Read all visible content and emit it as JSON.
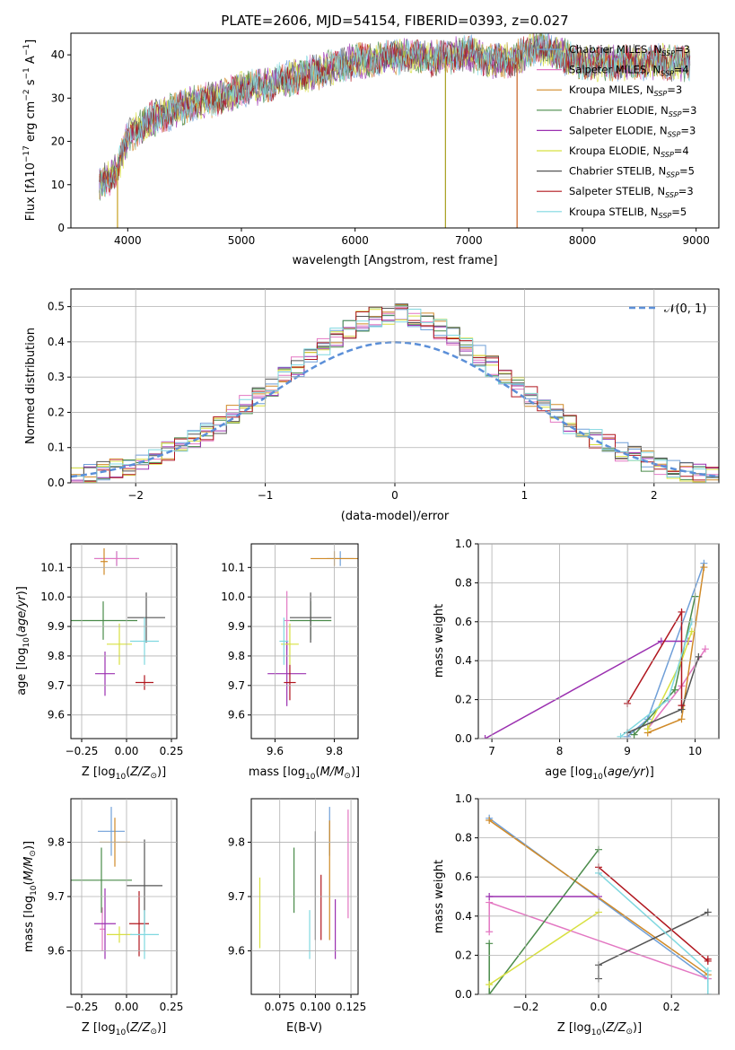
{
  "figure": {
    "title": "PLATE=2606, MJD=54154, FIBERID=0393, z=0.027"
  },
  "series_styles": [
    {
      "name": "Chabrier MILES",
      "nssp": "3",
      "color": "#6f9fd8"
    },
    {
      "name": "Salpeter MILES",
      "nssp": "4",
      "color": "#e377c2"
    },
    {
      "name": "Kroupa MILES",
      "nssp": "3",
      "color": "#d08a28"
    },
    {
      "name": "Chabrier ELODIE",
      "nssp": "3",
      "color": "#4a8b4a"
    },
    {
      "name": "Salpeter ELODIE",
      "nssp": "3",
      "color": "#9b30b0"
    },
    {
      "name": "Kroupa ELODIE",
      "nssp": "4",
      "color": "#d8e040"
    },
    {
      "name": "Chabrier STELIB",
      "nssp": "5",
      "color": "#555555"
    },
    {
      "name": "Salpeter STELIB",
      "nssp": "3",
      "color": "#b0161e"
    },
    {
      "name": "Kroupa STELIB",
      "nssp": "5",
      "color": "#7fd8e0"
    }
  ],
  "chart_data": [
    {
      "id": "spectrum",
      "type": "line",
      "xlabel": "wavelength [Angstrom, rest frame]",
      "ylabel": "Flux [f_λ10^-17 erg cm^-2 s^-1 A^-1]",
      "xlim": [
        3500,
        9200
      ],
      "ylim": [
        0,
        45
      ],
      "xticks": [
        "4000",
        "5000",
        "6000",
        "7000",
        "8000",
        "9000"
      ],
      "yticks": [
        "0",
        "10",
        "20",
        "30",
        "40"
      ],
      "legend": "top-right",
      "x_range": [
        3750,
        8950
      ],
      "continuum": [
        [
          3750,
          10
        ],
        [
          3900,
          13
        ],
        [
          4000,
          21
        ],
        [
          4200,
          25
        ],
        [
          4400,
          27
        ],
        [
          4600,
          29
        ],
        [
          4800,
          30
        ],
        [
          5000,
          32
        ],
        [
          5200,
          33
        ],
        [
          5500,
          35
        ],
        [
          5800,
          37
        ],
        [
          6000,
          38.5
        ],
        [
          6300,
          39.5
        ],
        [
          6500,
          40
        ],
        [
          6700,
          39
        ],
        [
          7000,
          40.5
        ],
        [
          7200,
          38.5
        ],
        [
          7400,
          39
        ],
        [
          7600,
          42
        ],
        [
          7800,
          40
        ],
        [
          8000,
          38
        ],
        [
          8300,
          38
        ],
        [
          8600,
          38.5
        ],
        [
          8950,
          38
        ]
      ],
      "spikes": [
        {
          "x": 3910,
          "y": 0
        },
        {
          "x": 6795,
          "y": 0
        },
        {
          "x": 7425,
          "y": 0
        }
      ],
      "grid": false
    },
    {
      "id": "residuals",
      "type": "histogram",
      "xlabel": "(data-model)/error",
      "ylabel": "Normed distribution",
      "xlim": [
        -2.5,
        2.5
      ],
      "ylim": [
        0,
        0.55
      ],
      "xticks": [
        "−2",
        "−1",
        "0",
        "1",
        "2"
      ],
      "yticks": [
        "0.0",
        "0.1",
        "0.2",
        "0.3",
        "0.4",
        "0.5"
      ],
      "bin_width": 0.1,
      "reference": {
        "label": "𝒩(0, 1)",
        "mean": 0,
        "sigma": 1,
        "color": "#5b8fd8"
      },
      "legend": "top-right",
      "grid": true
    },
    {
      "id": "age-vs-Z",
      "type": "errorbar",
      "xlabel": "Z [log10(Z/Z☉)]",
      "ylabel": "age  [log10(age/yr)]",
      "xlim": [
        -0.31,
        0.28
      ],
      "ylim": [
        9.52,
        10.18
      ],
      "xticks": [
        "−0.25",
        "0.00",
        "0.25"
      ],
      "yticks": [
        "9.6",
        "9.7",
        "9.8",
        "9.9",
        "10.0",
        "10.1"
      ],
      "points": [
        {
          "x": -0.055,
          "xerr": 0.125,
          "y": 10.13,
          "yerr": 0.025
        },
        {
          "x": -0.055,
          "xerr": 0.125,
          "y": 10.13,
          "yerr": 0.025
        },
        {
          "x": -0.125,
          "xerr": 0.02,
          "y": 10.12,
          "yerr": 0.045
        },
        {
          "x": -0.13,
          "xerr": 0.19,
          "y": 9.92,
          "yerr": 0.065
        },
        {
          "x": -0.12,
          "xerr": 0.055,
          "y": 9.74,
          "yerr": 0.075
        },
        {
          "x": -0.04,
          "xerr": 0.07,
          "y": 9.84,
          "yerr": 0.07
        },
        {
          "x": 0.11,
          "xerr": 0.105,
          "y": 9.93,
          "yerr": 0.085
        },
        {
          "x": 0.1,
          "xerr": 0.05,
          "y": 9.71,
          "yerr": 0.025
        },
        {
          "x": 0.1,
          "xerr": 0.08,
          "y": 9.85,
          "yerr": 0.08
        }
      ],
      "grid": true
    },
    {
      "id": "age-vs-mass",
      "type": "errorbar",
      "xlabel": "mass [log10(M/M☉)]",
      "ylabel": "",
      "xlim": [
        9.52,
        9.88
      ],
      "ylim": [
        9.52,
        10.18
      ],
      "xticks": [
        "9.6",
        "9.8"
      ],
      "yticks": [
        "9.6",
        "9.7",
        "9.8",
        "9.9",
        "10.0",
        "10.1"
      ],
      "points": [
        {
          "x": 9.82,
          "xerr": 0.045,
          "y": 10.13,
          "yerr": 0.025
        },
        {
          "x": 9.64,
          "xerr": 0.01,
          "y": 9.92,
          "yerr": 0.1
        },
        {
          "x": 9.8,
          "xerr": 0.08,
          "y": 10.13,
          "yerr": 0.025
        },
        {
          "x": 9.72,
          "xerr": 0.07,
          "y": 9.92,
          "yerr": 0.065
        },
        {
          "x": 9.64,
          "xerr": 0.065,
          "y": 9.74,
          "yerr": 0.11
        },
        {
          "x": 9.65,
          "xerr": 0.03,
          "y": 9.84,
          "yerr": 0.07
        },
        {
          "x": 9.72,
          "xerr": 0.07,
          "y": 9.93,
          "yerr": 0.085
        },
        {
          "x": 9.65,
          "xerr": 0.02,
          "y": 9.71,
          "yerr": 0.06
        },
        {
          "x": 9.63,
          "xerr": 0.015,
          "y": 9.85,
          "yerr": 0.08
        }
      ],
      "grid": true
    },
    {
      "id": "weight-vs-age",
      "type": "line",
      "xlabel": "age  [log10(age/yr)]",
      "ylabel": "mass weight",
      "xlim": [
        6.8,
        10.35
      ],
      "ylim": [
        0,
        1
      ],
      "xticks": [
        "7",
        "8",
        "9",
        "10"
      ],
      "yticks": [
        "0.0",
        "0.2",
        "0.4",
        "0.6",
        "0.8",
        "1.0"
      ],
      "series": [
        {
          "x": [
            9.0,
            9.3,
            10.13
          ],
          "y": [
            0.01,
            0.1,
            0.9
          ]
        },
        {
          "x": [
            9.3,
            9.8,
            10.15
          ],
          "y": [
            0.05,
            0.27,
            0.46
          ]
        },
        {
          "x": [
            9.3,
            9.8,
            10.13
          ],
          "y": [
            0.03,
            0.1,
            0.88
          ]
        },
        {
          "x": [
            9.1,
            9.7,
            10.0
          ],
          "y": [
            0.02,
            0.25,
            0.73
          ]
        },
        {
          "x": [
            6.9,
            9.5,
            9.9
          ],
          "y": [
            0.0,
            0.5,
            0.5
          ]
        },
        {
          "x": [
            9.3,
            9.8,
            9.95
          ],
          "y": [
            0.05,
            0.4,
            0.55
          ]
        },
        {
          "x": [
            9.0,
            9.8,
            10.05
          ],
          "y": [
            0.03,
            0.15,
            0.42
          ]
        },
        {
          "x": [
            9.0,
            9.8,
            9.8
          ],
          "y": [
            0.18,
            0.65,
            0.17
          ]
        },
        {
          "x": [
            8.9,
            9.6,
            9.95
          ],
          "y": [
            0.01,
            0.2,
            0.6
          ]
        }
      ],
      "grid": true
    },
    {
      "id": "mass-vs-Z",
      "type": "errorbar",
      "xlabel": "Z [log10(Z/Z☉)]",
      "ylabel": "mass [log10(M/M☉)]",
      "xlim": [
        -0.31,
        0.28
      ],
      "ylim": [
        9.52,
        9.88
      ],
      "xticks": [
        "−0.25",
        "0.00",
        "0.25"
      ],
      "yticks": [
        "9.6",
        "9.7",
        "9.8"
      ],
      "points": [
        {
          "x": -0.085,
          "xerr": 0.075,
          "y": 9.82,
          "yerr": 0.045
        },
        {
          "x": -0.135,
          "xerr": 0.015,
          "y": 9.64,
          "yerr": 0.04
        },
        {
          "x": -0.065,
          "xerr": 0.085,
          "y": 9.8,
          "yerr": 0.045
        },
        {
          "x": -0.14,
          "xerr": 0.17,
          "y": 9.73,
          "yerr": 0.06
        },
        {
          "x": -0.12,
          "xerr": 0.06,
          "y": 9.65,
          "yerr": 0.065
        },
        {
          "x": -0.04,
          "xerr": 0.07,
          "y": 9.63,
          "yerr": 0.015
        },
        {
          "x": 0.1,
          "xerr": 0.1,
          "y": 9.72,
          "yerr": 0.085
        },
        {
          "x": 0.07,
          "xerr": 0.055,
          "y": 9.65,
          "yerr": 0.06
        },
        {
          "x": 0.1,
          "xerr": 0.08,
          "y": 9.63,
          "yerr": 0.045
        }
      ],
      "grid": true
    },
    {
      "id": "mass-vs-ebv",
      "type": "errorbar",
      "xlabel": "E(B-V)",
      "ylabel": "",
      "xlim": [
        0.055,
        0.13
      ],
      "ylim": [
        9.52,
        9.88
      ],
      "xticks": [
        "0.075",
        "0.100",
        "0.125"
      ],
      "yticks": [
        "9.6",
        "9.7",
        "9.8"
      ],
      "points": [
        {
          "x": 0.11,
          "xerr": 0,
          "y": 9.82,
          "yerr": 0.045
        },
        {
          "x": 0.123,
          "xerr": 0,
          "y": 9.76,
          "yerr": 0.1
        },
        {
          "x": 0.11,
          "xerr": 0,
          "y": 9.73,
          "yerr": 0.11
        },
        {
          "x": 0.085,
          "xerr": 0,
          "y": 9.73,
          "yerr": 0.06
        },
        {
          "x": 0.114,
          "xerr": 0,
          "y": 9.64,
          "yerr": 0.055
        },
        {
          "x": 0.061,
          "xerr": 0,
          "y": 9.67,
          "yerr": 0.065
        },
        {
          "x": 0.1,
          "xerr": 0,
          "y": 9.72,
          "yerr": 0.1
        },
        {
          "x": 0.104,
          "xerr": 0,
          "y": 9.68,
          "yerr": 0.06
        },
        {
          "x": 0.096,
          "xerr": 0,
          "y": 9.63,
          "yerr": 0.045
        }
      ],
      "grid": true
    },
    {
      "id": "weight-vs-Z",
      "type": "line",
      "xlabel": "Z [log10(Z/Z☉)]",
      "ylabel": "mass weight",
      "xlim": [
        -0.33,
        0.33
      ],
      "ylim": [
        0,
        1
      ],
      "xticks": [
        "−0.2",
        "0.0",
        "0.2"
      ],
      "yticks": [
        "0.0",
        "0.2",
        "0.4",
        "0.6",
        "0.8",
        "1.0"
      ],
      "series": [
        {
          "x": [
            -0.3,
            0.3
          ],
          "y": [
            0.9,
            0.08
          ]
        },
        {
          "x": [
            -0.3,
            -0.3,
            0.3
          ],
          "y": [
            0.32,
            0.47,
            0.08
          ]
        },
        {
          "x": [
            -0.3,
            0.3
          ],
          "y": [
            0.89,
            0.1
          ]
        },
        {
          "x": [
            -0.3,
            -0.3,
            0.0
          ],
          "y": [
            0.26,
            0.0,
            0.74
          ]
        },
        {
          "x": [
            -0.3,
            0.0
          ],
          "y": [
            0.5,
            0.5
          ]
        },
        {
          "x": [
            -0.3,
            0.0
          ],
          "y": [
            0.05,
            0.42
          ]
        },
        {
          "x": [
            0.0,
            0.0,
            0.3
          ],
          "y": [
            0.08,
            0.15,
            0.42
          ]
        },
        {
          "x": [
            0.0,
            0.3,
            0.3
          ],
          "y": [
            0.65,
            0.17,
            0.18
          ]
        },
        {
          "x": [
            0.0,
            0.3,
            0.3
          ],
          "y": [
            0.62,
            0.12,
            0.0
          ]
        }
      ],
      "grid": true
    }
  ]
}
